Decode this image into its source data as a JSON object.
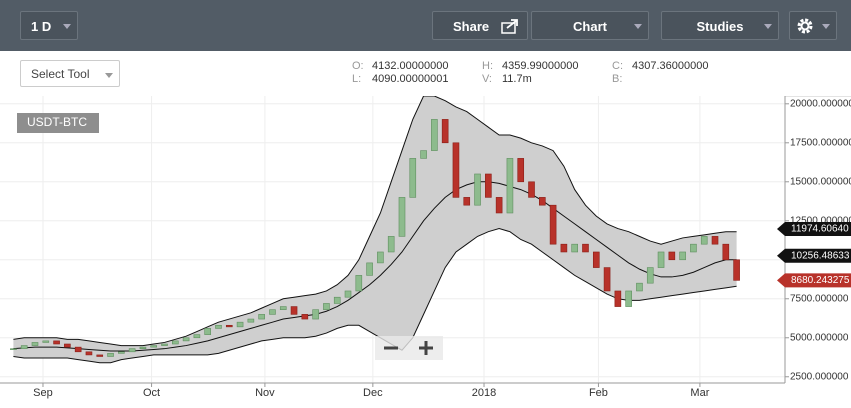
{
  "header": {
    "interval": "1 D",
    "share": "Share",
    "chart": "Chart",
    "studies": "Studies"
  },
  "toolbar": {
    "select_tool": "Select Tool",
    "ohlc": {
      "o_label": "O:",
      "o": "4132.00000000",
      "h_label": "H:",
      "h": "4359.99000000",
      "c_label": "C:",
      "c": "4307.36000000",
      "l_label": "L:",
      "l": "4090.00000001",
      "v_label": "V:",
      "v": "11.7m",
      "b_label": "B:"
    }
  },
  "chart_data": {
    "type": "candlestick",
    "symbol": "USDT-BTC",
    "close": [
      4300,
      4500,
      4700,
      4800,
      4600,
      4400,
      4100,
      3900,
      3800,
      4000,
      4100,
      4300,
      4400,
      4500,
      4600,
      4800,
      5000,
      5200,
      5600,
      5800,
      5700,
      6000,
      6200,
      6500,
      6800,
      7000,
      6500,
      6200,
      6800,
      7200,
      7600,
      8000,
      9000,
      9800,
      10500,
      11500,
      14000,
      16500,
      17000,
      19000,
      17500,
      14000,
      13500,
      15500,
      14000,
      13000,
      16500,
      15000,
      14000,
      13500,
      11000,
      10500,
      11000,
      10500,
      9500,
      8000,
      7000,
      8000,
      8500,
      9500,
      10500,
      10000,
      10500,
      11000,
      11500,
      11000,
      10000,
      8680
    ],
    "upper": [
      4900,
      5000,
      5000,
      5000,
      5000,
      4900,
      4900,
      4800,
      4700,
      4600,
      4500,
      4500,
      4500,
      4600,
      4700,
      4900,
      5100,
      5400,
      5700,
      6000,
      6200,
      6400,
      6600,
      6900,
      7200,
      7500,
      7600,
      7700,
      7800,
      8000,
      8400,
      9000,
      10000,
      11500,
      13000,
      15000,
      17000,
      19000,
      20500,
      20500,
      20200,
      19800,
      19500,
      19000,
      18500,
      18000,
      18000,
      17800,
      17500,
      17300,
      17000,
      16000,
      14500,
      13500,
      12800,
      12300,
      12000,
      11800,
      11500,
      11200,
      11000,
      11200,
      11400,
      11500,
      11600,
      11700,
      11800,
      11800
    ],
    "middle": [
      4300,
      4350,
      4400,
      4400,
      4400,
      4350,
      4300,
      4250,
      4200,
      4150,
      4150,
      4150,
      4200,
      4250,
      4300,
      4400,
      4500,
      4650,
      4800,
      5000,
      5200,
      5400,
      5600,
      5800,
      6000,
      6200,
      6300,
      6400,
      6500,
      6700,
      7000,
      7400,
      7900,
      8400,
      9000,
      9700,
      10500,
      11500,
      12500,
      13300,
      14000,
      14500,
      14800,
      15000,
      15000,
      14900,
      14700,
      14500,
      14200,
      13800,
      13300,
      12800,
      12300,
      11800,
      11300,
      10800,
      10300,
      9800,
      9400,
      9100,
      8900,
      8900,
      9000,
      9200,
      9500,
      9800,
      10000,
      10000
    ],
    "lower": [
      3800,
      3700,
      3700,
      3700,
      3700,
      3700,
      3600,
      3500,
      3400,
      3400,
      3600,
      3700,
      3800,
      3900,
      3900,
      3900,
      3900,
      3900,
      3900,
      4000,
      4200,
      4400,
      4600,
      4800,
      4900,
      5000,
      5000,
      5000,
      5100,
      5300,
      5600,
      5800,
      5800,
      5400,
      5000,
      4600,
      4200,
      5000,
      6500,
      8000,
      9500,
      10500,
      11000,
      11500,
      11800,
      12000,
      11800,
      11300,
      11000,
      10500,
      10000,
      9500,
      9000,
      8600,
      8200,
      7800,
      7500,
      7400,
      7400,
      7500,
      7600,
      7700,
      7800,
      7900,
      8000,
      8100,
      8200,
      8300
    ],
    "up_color": "#8dbb8d",
    "down_color": "#b8322a",
    "band_color": "#cfcfcf",
    "xlim": [
      0,
      68
    ],
    "xticks": [
      {
        "value": 3.24,
        "label": "Sep"
      },
      {
        "value": 13.3,
        "label": "Oct"
      },
      {
        "value": 23.8,
        "label": "Nov"
      },
      {
        "value": 33.8,
        "label": "Dec"
      },
      {
        "value": 44.1,
        "label": "2018"
      },
      {
        "value": 54.7,
        "label": "Feb"
      },
      {
        "value": 64.1,
        "label": "Mar"
      }
    ],
    "ylim": [
      2100,
      20500
    ],
    "yticks": [
      {
        "value": 2500,
        "label": "2500.000000"
      },
      {
        "value": 5000,
        "label": "5000.000000"
      },
      {
        "value": 7500,
        "label": "7500.000000"
      },
      {
        "value": 10000,
        "label": "10000.000000"
      },
      {
        "value": 12500,
        "label": "12500.000000"
      },
      {
        "value": 15000,
        "label": "15000.000000"
      },
      {
        "value": 17500,
        "label": "17500.000000"
      },
      {
        "value": 20000,
        "label": "20000.000000"
      }
    ],
    "price_tags": [
      {
        "value": 11974.6064,
        "label": "11974.60640",
        "color": "#111111"
      },
      {
        "value": 10256.48633,
        "label": "10256.48633",
        "color": "#111111"
      },
      {
        "value": 8680.243275,
        "label": "8680.243275",
        "color": "#b8322a"
      }
    ],
    "grid": true
  }
}
